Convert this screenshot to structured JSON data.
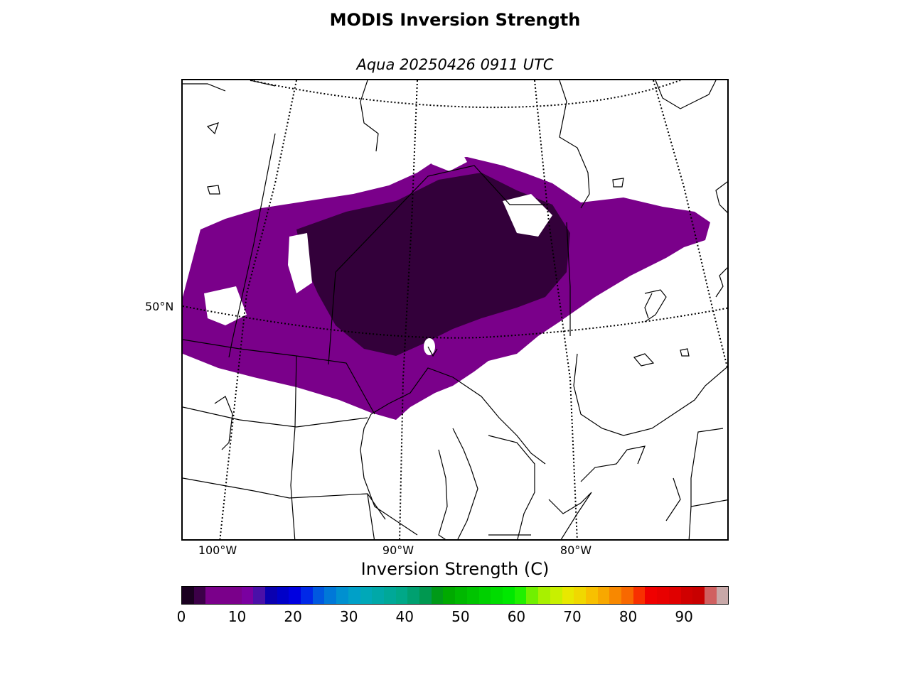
{
  "figure": {
    "title": "MODIS Inversion Strength",
    "subtitle": "Aqua 20250426 0911 UTC"
  },
  "map": {
    "region": "central Canada / Great Lakes",
    "lat_labels": [
      "50°N"
    ],
    "lon_labels": [
      "100°W",
      "90°W",
      "80°W"
    ],
    "graticule_style": "dotted",
    "features": [
      "coastlines",
      "country borders",
      "state/province borders",
      "great lakes"
    ],
    "data_field": "inversion strength",
    "dominant_color": "#7a008a",
    "dark_color": "#33003a",
    "no_data_color": "#ffffff"
  },
  "colorbar": {
    "label": "Inversion Strength (C)",
    "ticks": [
      "0",
      "10",
      "20",
      "30",
      "40",
      "50",
      "60",
      "70",
      "80",
      "90"
    ],
    "range": [
      0,
      98
    ],
    "colors": [
      "#1a0020",
      "#3c0048",
      "#7a008a",
      "#7a008a",
      "#7a008a",
      "#7a00a0",
      "#4a10a8",
      "#0a00b0",
      "#0000c8",
      "#0000e0",
      "#0028e8",
      "#0058e0",
      "#0078d8",
      "#0090d0",
      "#00a0c8",
      "#00a8b8",
      "#00a8a8",
      "#00a898",
      "#00a888",
      "#00a070",
      "#009850",
      "#009a18",
      "#00aa00",
      "#00b800",
      "#00c400",
      "#00d000",
      "#00dc00",
      "#00e800",
      "#20f000",
      "#70f000",
      "#a8f000",
      "#c8f000",
      "#e8e800",
      "#f0d800",
      "#f8c000",
      "#f8a800",
      "#f88800",
      "#f86800",
      "#f83000",
      "#f00000",
      "#e80000",
      "#e00000",
      "#d00000",
      "#c80000",
      "#d06060",
      "#c8a8a8"
    ]
  }
}
